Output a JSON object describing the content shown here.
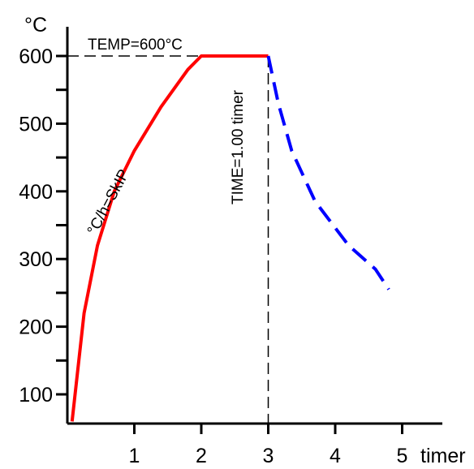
{
  "chart_data": {
    "type": "line",
    "y_unit": "°C",
    "x_unit": "timer",
    "xlim": [
      0,
      5.5
    ],
    "ylim": [
      50,
      650
    ],
    "x_ticks": [
      1,
      2,
      3,
      4,
      5
    ],
    "x_tick_labels": [
      "1",
      "2",
      "3",
      "4",
      "5"
    ],
    "y_major_ticks": [
      100,
      200,
      300,
      400,
      500,
      600
    ],
    "y_tick_labels": [
      "100",
      "200",
      "300",
      "400",
      "500",
      "600"
    ],
    "y_minor_ticks": [
      150,
      250,
      350,
      450,
      550
    ],
    "grid": false,
    "series": [
      {
        "style": "solid",
        "color": "#ff0000",
        "x": [
          0.07,
          0.25,
          0.45,
          0.7,
          1.0,
          1.4,
          1.8,
          2.0,
          2.5,
          3.0
        ],
        "y": [
          60,
          220,
          320,
          400,
          460,
          525,
          580,
          600,
          600,
          600
        ]
      },
      {
        "style": "dashed",
        "color": "#0000ff",
        "x": [
          3.0,
          3.15,
          3.35,
          3.7,
          4.2,
          4.6,
          4.8
        ],
        "y": [
          600,
          530,
          460,
          385,
          320,
          285,
          255
        ]
      }
    ],
    "annotations": {
      "temp_label": "TEMP=600°C",
      "time_label": "TIME=1.00 timer",
      "rate_label": "°C/h=SkIP"
    },
    "reference_lines": {
      "temp_value": 600,
      "time_value": 3
    }
  }
}
